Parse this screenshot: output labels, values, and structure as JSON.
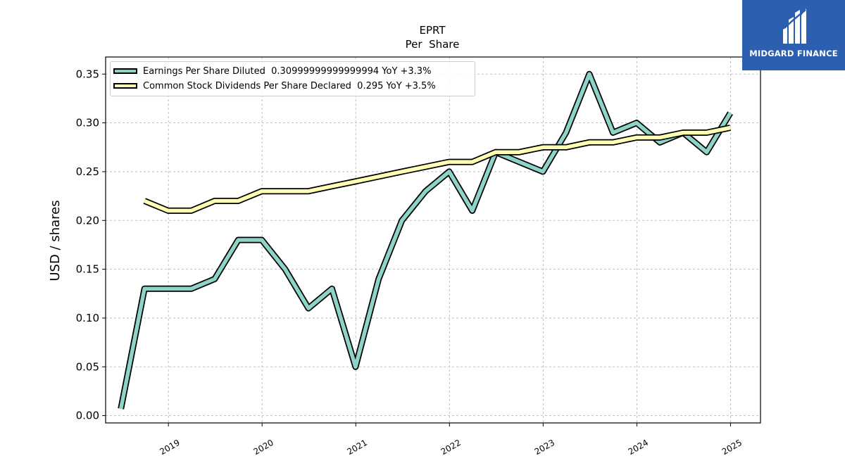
{
  "chart_data": {
    "type": "line",
    "title": "EPRT",
    "subtitle": "Per  Share",
    "xlabel": "",
    "ylabel": "USD / shares",
    "xlim": [
      2018.33,
      2025.32
    ],
    "ylim": [
      -0.0075,
      0.3675
    ],
    "x_ticks": [
      2019,
      2020,
      2021,
      2022,
      2023,
      2024,
      2025
    ],
    "x_tick_labels": [
      "2019",
      "2020",
      "2021",
      "2022",
      "2023",
      "2024",
      "2025"
    ],
    "y_ticks": [
      0.0,
      0.05,
      0.1,
      0.15,
      0.2,
      0.25,
      0.3,
      0.35
    ],
    "y_tick_labels": [
      "0.00",
      "0.05",
      "0.10",
      "0.15",
      "0.20",
      "0.25",
      "0.30",
      "0.35"
    ],
    "grid": true,
    "legend_position": "top-left",
    "series": [
      {
        "name": "Earnings Per Share Diluted",
        "legend_label": "Earnings Per Share Diluted  0.30999999999999994 YoY +3.3%",
        "color": "#8dd3c7",
        "x": [
          "2018-06-30",
          "2018-09-30",
          "2018-12-31",
          "2019-03-31",
          "2019-06-30",
          "2019-09-30",
          "2019-12-31",
          "2020-03-31",
          "2020-06-30",
          "2020-09-30",
          "2020-12-31",
          "2021-03-31",
          "2021-06-30",
          "2021-09-30",
          "2021-12-31",
          "2022-03-31",
          "2022-06-30",
          "2022-09-30",
          "2022-12-31",
          "2023-03-31",
          "2023-06-30",
          "2023-09-30",
          "2023-12-31",
          "2024-03-31",
          "2024-06-30",
          "2024-09-30",
          "2024-12-31"
        ],
        "values": [
          0.007,
          0.13,
          0.13,
          0.13,
          0.14,
          0.18,
          0.18,
          0.15,
          0.11,
          0.13,
          0.05,
          0.14,
          0.2,
          0.23,
          0.25,
          0.21,
          0.27,
          0.26,
          0.25,
          0.29,
          0.35,
          0.29,
          0.3,
          0.28,
          0.29,
          0.27,
          0.31
        ]
      },
      {
        "name": "Common Stock Dividends Per Share Declared",
        "legend_label": "Common Stock Dividends Per Share Declared  0.295 YoY +3.5%",
        "color": "#ffffb3",
        "x": [
          "2018-09-30",
          "2018-12-31",
          "2019-03-31",
          "2019-06-30",
          "2019-09-30",
          "2019-12-31",
          "2020-03-31",
          "2020-06-30",
          "2020-09-30",
          "2020-12-31",
          "2021-03-31",
          "2021-06-30",
          "2021-09-30",
          "2021-12-31",
          "2022-03-31",
          "2022-06-30",
          "2022-09-30",
          "2022-12-31",
          "2023-03-31",
          "2023-06-30",
          "2023-09-30",
          "2023-12-31",
          "2024-03-31",
          "2024-06-30",
          "2024-09-30",
          "2024-12-31"
        ],
        "values": [
          0.22,
          0.21,
          0.21,
          0.22,
          0.22,
          0.23,
          0.23,
          0.23,
          0.235,
          0.24,
          0.245,
          0.25,
          0.255,
          0.26,
          0.26,
          0.27,
          0.27,
          0.275,
          0.275,
          0.28,
          0.28,
          0.285,
          0.285,
          0.29,
          0.29,
          0.295
        ]
      }
    ]
  },
  "branding": {
    "logo_text": "MIDGARD FINANCE",
    "logo_color": "#2d5fb0"
  }
}
